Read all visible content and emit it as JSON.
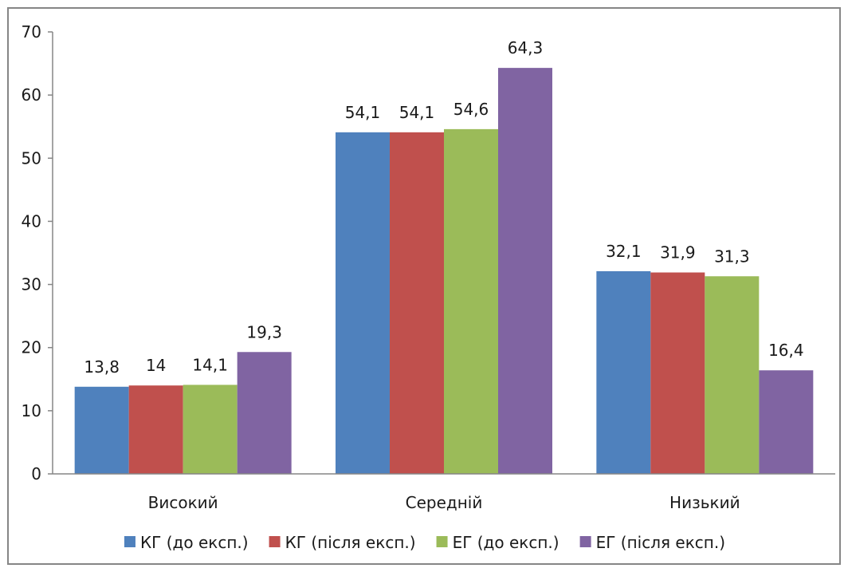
{
  "chart_data": {
    "type": "bar",
    "title": "",
    "xlabel": "",
    "ylabel": "",
    "categories": [
      "Високий",
      "Середній",
      "Низький"
    ],
    "series": [
      {
        "name": "КГ (до експ.)",
        "color": "#4F81BD",
        "values": [
          13.8,
          54.1,
          32.1
        ],
        "labels": [
          "13,8",
          "54,1",
          "32,1"
        ]
      },
      {
        "name": "КГ (після експ.)",
        "color": "#C0504D",
        "values": [
          14,
          54.1,
          31.9
        ],
        "labels": [
          "14",
          "54,1",
          "31,9"
        ]
      },
      {
        "name": "ЕГ (до експ.)",
        "color": "#9BBB59",
        "values": [
          14.1,
          54.6,
          31.3
        ],
        "labels": [
          "14,1",
          "54,6",
          "31,3"
        ]
      },
      {
        "name": "ЕГ (після експ.)",
        "color": "#8064A2",
        "values": [
          19.3,
          64.3,
          16.4
        ],
        "labels": [
          "19,3",
          "64,3",
          "16,4"
        ]
      }
    ],
    "ylim": [
      0,
      70
    ],
    "yticks": [
      0,
      10,
      20,
      30,
      40,
      50,
      60,
      70
    ],
    "grid": false,
    "legend": "bottom"
  }
}
